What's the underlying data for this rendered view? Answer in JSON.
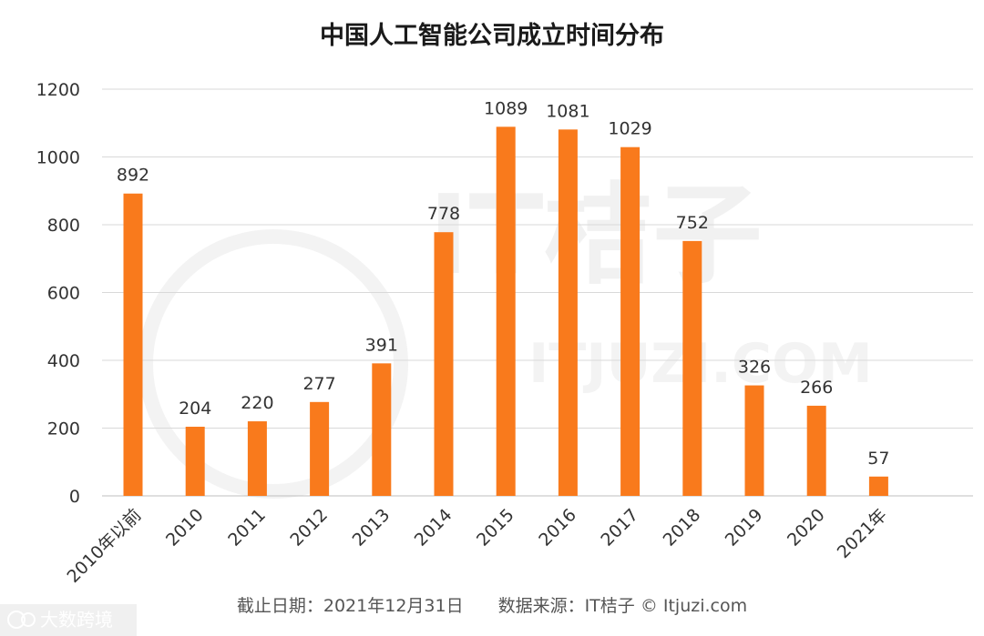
{
  "chart_data": {
    "type": "bar",
    "title": "中国人工智能公司成立时间分布",
    "categories": [
      "2010年以前",
      "2010",
      "2011",
      "2012",
      "2013",
      "2014",
      "2015",
      "2016",
      "2017",
      "2018",
      "2019",
      "2020",
      "2021年"
    ],
    "values": [
      892,
      204,
      220,
      277,
      391,
      778,
      1089,
      1081,
      1029,
      752,
      326,
      266,
      57
    ],
    "xlabel": "",
    "ylabel": "",
    "ylim": [
      0,
      1200
    ],
    "yticks": [
      0,
      200,
      400,
      600,
      800,
      1000,
      1200
    ],
    "grid": true,
    "legend": "none",
    "bar_color": "#f97a1c"
  },
  "footer": {
    "note": "截止日期：2021年12月31日　　数据来源：IT桔子 © Itjuzi.com"
  },
  "background_watermark": {
    "text": "IT桔子",
    "subtext": "ITJUZI.COM"
  },
  "corner_watermark": {
    "text": "大数跨境",
    "icon": "logo-icon"
  },
  "colors": {
    "grid": "#d9d9d9",
    "axis": "#bfbfbf"
  }
}
